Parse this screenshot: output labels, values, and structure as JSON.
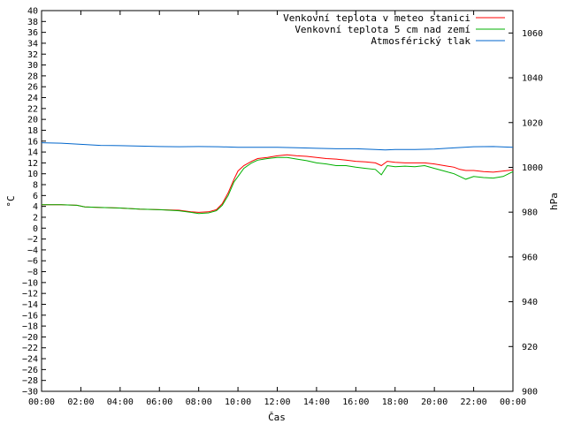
{
  "chart_data": {
    "type": "line",
    "title": "",
    "xlabel": "Čas",
    "ylabel_left": "°C",
    "ylabel_right": "hPa",
    "ylim_left": [
      -30,
      40
    ],
    "ylim_right": [
      900,
      1070
    ],
    "xlim": [
      "00:00",
      "24:00"
    ],
    "x_tick_labels": [
      "00:00",
      "02:00",
      "04:00",
      "06:00",
      "08:00",
      "10:00",
      "12:00",
      "14:00",
      "16:00",
      "18:00",
      "20:00",
      "22:00",
      "00:00"
    ],
    "y_tick_labels_left": [
      "40",
      "38",
      "36",
      "34",
      "32",
      "30",
      "28",
      "26",
      "24",
      "22",
      "20",
      "18",
      "16",
      "14",
      "12",
      "10",
      "8",
      "6",
      "4",
      "2",
      "0",
      "−2",
      "−4",
      "−6",
      "−8",
      "−10",
      "−12",
      "−14",
      "−16",
      "−18",
      "−20",
      "−22",
      "−24",
      "−26",
      "−28",
      "−30"
    ],
    "y_tick_labels_right": [
      "1060",
      "1040",
      "1020",
      "1000",
      "980",
      "960",
      "940",
      "920",
      "900"
    ],
    "grid": false,
    "legend_position": "top-right",
    "series": [
      {
        "name": "Venkovní teplota v meteo stanici",
        "axis": "left",
        "color": "#ff0000",
        "points": [
          [
            0,
            4.3
          ],
          [
            1,
            4.3
          ],
          [
            1.8,
            4.2
          ],
          [
            2.2,
            3.9
          ],
          [
            3,
            3.8
          ],
          [
            4,
            3.7
          ],
          [
            5,
            3.5
          ],
          [
            6,
            3.4
          ],
          [
            7,
            3.3
          ],
          [
            7.6,
            3.0
          ],
          [
            8,
            2.9
          ],
          [
            8.5,
            3.0
          ],
          [
            8.9,
            3.4
          ],
          [
            9.2,
            4.5
          ],
          [
            9.5,
            6.5
          ],
          [
            9.8,
            9.0
          ],
          [
            10,
            10.5
          ],
          [
            10.3,
            11.5
          ],
          [
            10.7,
            12.3
          ],
          [
            11,
            12.8
          ],
          [
            11.5,
            13.0
          ],
          [
            12,
            13.3
          ],
          [
            12.5,
            13.5
          ],
          [
            13,
            13.3
          ],
          [
            13.5,
            13.2
          ],
          [
            14,
            13.0
          ],
          [
            14.5,
            12.8
          ],
          [
            15,
            12.7
          ],
          [
            15.5,
            12.5
          ],
          [
            16,
            12.3
          ],
          [
            16.5,
            12.2
          ],
          [
            17,
            12.0
          ],
          [
            17.3,
            11.5
          ],
          [
            17.6,
            12.3
          ],
          [
            18,
            12.1
          ],
          [
            18.5,
            12.0
          ],
          [
            19,
            12.0
          ],
          [
            19.5,
            12.0
          ],
          [
            20,
            11.8
          ],
          [
            20.5,
            11.5
          ],
          [
            21,
            11.2
          ],
          [
            21.3,
            10.8
          ],
          [
            21.6,
            10.6
          ],
          [
            22,
            10.6
          ],
          [
            22.5,
            10.4
          ],
          [
            23,
            10.3
          ],
          [
            23.5,
            10.5
          ],
          [
            24,
            10.7
          ]
        ]
      },
      {
        "name": "Venkovní teplota 5 cm nad zemí",
        "axis": "left",
        "color": "#00b000",
        "points": [
          [
            0,
            4.3
          ],
          [
            1,
            4.3
          ],
          [
            1.8,
            4.2
          ],
          [
            2.2,
            3.9
          ],
          [
            3,
            3.8
          ],
          [
            4,
            3.7
          ],
          [
            5,
            3.5
          ],
          [
            6,
            3.4
          ],
          [
            7,
            3.2
          ],
          [
            7.6,
            2.9
          ],
          [
            8,
            2.7
          ],
          [
            8.5,
            2.8
          ],
          [
            8.9,
            3.2
          ],
          [
            9.2,
            4.2
          ],
          [
            9.5,
            6.0
          ],
          [
            9.8,
            8.5
          ],
          [
            10,
            9.5
          ],
          [
            10.3,
            11.0
          ],
          [
            10.7,
            12.0
          ],
          [
            11,
            12.5
          ],
          [
            11.5,
            12.8
          ],
          [
            12,
            13.0
          ],
          [
            12.5,
            13.0
          ],
          [
            13,
            12.7
          ],
          [
            13.5,
            12.4
          ],
          [
            14,
            12.0
          ],
          [
            14.5,
            11.8
          ],
          [
            15,
            11.5
          ],
          [
            15.5,
            11.5
          ],
          [
            16,
            11.2
          ],
          [
            16.5,
            11.0
          ],
          [
            17,
            10.8
          ],
          [
            17.3,
            9.8
          ],
          [
            17.6,
            11.5
          ],
          [
            18,
            11.3
          ],
          [
            18.5,
            11.4
          ],
          [
            19,
            11.3
          ],
          [
            19.5,
            11.5
          ],
          [
            20,
            11.0
          ],
          [
            20.5,
            10.5
          ],
          [
            21,
            10.0
          ],
          [
            21.3,
            9.5
          ],
          [
            21.6,
            9.0
          ],
          [
            22,
            9.5
          ],
          [
            22.5,
            9.3
          ],
          [
            23,
            9.2
          ],
          [
            23.5,
            9.5
          ],
          [
            24,
            10.4
          ]
        ]
      },
      {
        "name": "Atmosférický tlak",
        "axis": "right",
        "color": "#0066cc",
        "points": [
          [
            0,
            1011.0
          ],
          [
            1,
            1010.8
          ],
          [
            2,
            1010.3
          ],
          [
            3,
            1009.8
          ],
          [
            4,
            1009.7
          ],
          [
            5,
            1009.5
          ],
          [
            6,
            1009.3
          ],
          [
            7,
            1009.2
          ],
          [
            8,
            1009.3
          ],
          [
            9,
            1009.2
          ],
          [
            10,
            1009.0
          ],
          [
            11,
            1009.0
          ],
          [
            12,
            1009.0
          ],
          [
            13,
            1008.8
          ],
          [
            14,
            1008.5
          ],
          [
            15,
            1008.3
          ],
          [
            16,
            1008.3
          ],
          [
            17,
            1008.0
          ],
          [
            17.5,
            1007.8
          ],
          [
            18,
            1008.0
          ],
          [
            19,
            1008.0
          ],
          [
            20,
            1008.2
          ],
          [
            21,
            1008.7
          ],
          [
            22,
            1009.2
          ],
          [
            23,
            1009.3
          ],
          [
            24,
            1009.0
          ]
        ]
      }
    ]
  }
}
